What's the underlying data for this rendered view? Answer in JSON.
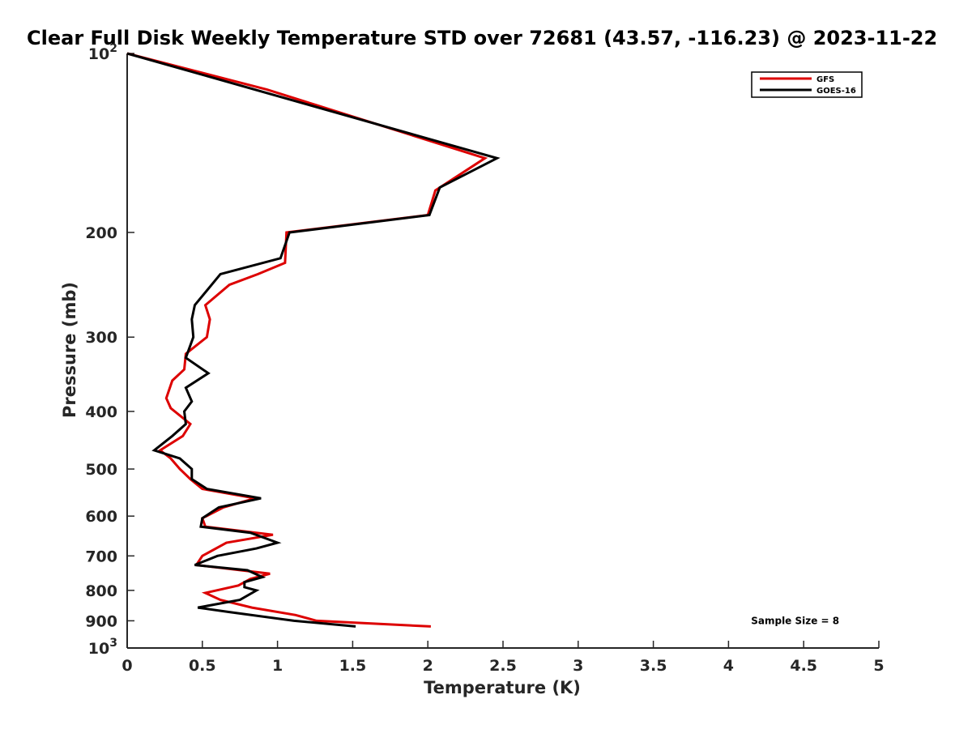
{
  "chart_data": {
    "type": "line",
    "title": "Clear Full Disk Weekly Temperature STD over 72681 (43.57, -116.23) @ 2023-11-22",
    "xlabel": "Temperature (K)",
    "ylabel": "Pressure (mb)",
    "xlim": [
      0,
      5
    ],
    "ylim": [
      100,
      1000
    ],
    "y_scale": "log",
    "y_reversed": true,
    "grid": false,
    "legend_position": "top-right",
    "x_ticks": [
      {
        "value": 0,
        "label": "0"
      },
      {
        "value": 0.5,
        "label": "0.5"
      },
      {
        "value": 1,
        "label": "1"
      },
      {
        "value": 1.5,
        "label": "1.5"
      },
      {
        "value": 2,
        "label": "2"
      },
      {
        "value": 2.5,
        "label": "2.5"
      },
      {
        "value": 3,
        "label": "3"
      },
      {
        "value": 3.5,
        "label": "3.5"
      },
      {
        "value": 4,
        "label": "4"
      },
      {
        "value": 4.5,
        "label": "4.5"
      },
      {
        "value": 5,
        "label": "5"
      }
    ],
    "y_ticks": [
      {
        "value": 100,
        "label": "10",
        "exp": "2"
      },
      {
        "value": 200,
        "label": "200"
      },
      {
        "value": 300,
        "label": "300"
      },
      {
        "value": 400,
        "label": "400"
      },
      {
        "value": 500,
        "label": "500"
      },
      {
        "value": 600,
        "label": "600"
      },
      {
        "value": 700,
        "label": "700"
      },
      {
        "value": 800,
        "label": "800"
      },
      {
        "value": 900,
        "label": "900"
      },
      {
        "value": 1000,
        "label": "10",
        "exp": "3"
      }
    ],
    "series": [
      {
        "name": "GFS",
        "color": "#dd0000",
        "points": [
          [
            0.0,
            100
          ],
          [
            0.93,
            115
          ],
          [
            2.38,
            150
          ],
          [
            2.05,
            170
          ],
          [
            2.0,
            187
          ],
          [
            1.06,
            200
          ],
          [
            1.05,
            225
          ],
          [
            0.87,
            235
          ],
          [
            0.68,
            245
          ],
          [
            0.52,
            265
          ],
          [
            0.55,
            280
          ],
          [
            0.53,
            300
          ],
          [
            0.39,
            320
          ],
          [
            0.38,
            340
          ],
          [
            0.3,
            355
          ],
          [
            0.26,
            380
          ],
          [
            0.29,
            395
          ],
          [
            0.42,
            420
          ],
          [
            0.37,
            440
          ],
          [
            0.22,
            465
          ],
          [
            0.29,
            480
          ],
          [
            0.35,
            500
          ],
          [
            0.42,
            520
          ],
          [
            0.5,
            540
          ],
          [
            0.85,
            560
          ],
          [
            0.64,
            580
          ],
          [
            0.5,
            605
          ],
          [
            0.52,
            625
          ],
          [
            0.97,
            645
          ],
          [
            0.66,
            665
          ],
          [
            0.5,
            700
          ],
          [
            0.46,
            725
          ],
          [
            0.95,
            750
          ],
          [
            0.82,
            765
          ],
          [
            0.74,
            785
          ],
          [
            0.52,
            808
          ],
          [
            0.62,
            830
          ],
          [
            0.83,
            855
          ],
          [
            1.12,
            880
          ],
          [
            1.26,
            900
          ],
          [
            2.02,
            920
          ]
        ]
      },
      {
        "name": "GOES-16",
        "color": "#000000",
        "points": [
          [
            0.0,
            100
          ],
          [
            2.46,
            150
          ],
          [
            2.08,
            168
          ],
          [
            2.01,
            187
          ],
          [
            1.08,
            200
          ],
          [
            1.02,
            221
          ],
          [
            0.62,
            235
          ],
          [
            0.45,
            265
          ],
          [
            0.43,
            280
          ],
          [
            0.44,
            300
          ],
          [
            0.39,
            325
          ],
          [
            0.54,
            345
          ],
          [
            0.39,
            365
          ],
          [
            0.43,
            385
          ],
          [
            0.38,
            400
          ],
          [
            0.39,
            420
          ],
          [
            0.3,
            440
          ],
          [
            0.18,
            465
          ],
          [
            0.35,
            480
          ],
          [
            0.43,
            500
          ],
          [
            0.43,
            520
          ],
          [
            0.53,
            540
          ],
          [
            0.89,
            560
          ],
          [
            0.61,
            580
          ],
          [
            0.5,
            605
          ],
          [
            0.49,
            625
          ],
          [
            0.82,
            640
          ],
          [
            1.0,
            665
          ],
          [
            0.86,
            680
          ],
          [
            0.6,
            700
          ],
          [
            0.45,
            725
          ],
          [
            0.8,
            740
          ],
          [
            0.9,
            760
          ],
          [
            0.78,
            775
          ],
          [
            0.78,
            790
          ],
          [
            0.86,
            800
          ],
          [
            0.75,
            830
          ],
          [
            0.47,
            855
          ],
          [
            0.68,
            870
          ],
          [
            1.11,
            900
          ],
          [
            1.52,
            920
          ]
        ]
      }
    ],
    "annotations": [
      {
        "text": "Sample Size = 8",
        "x": 4.15,
        "y": 900
      }
    ]
  },
  "colors": {
    "axis": "#262626",
    "background": "#ffffff",
    "legend_border": "#000000"
  }
}
